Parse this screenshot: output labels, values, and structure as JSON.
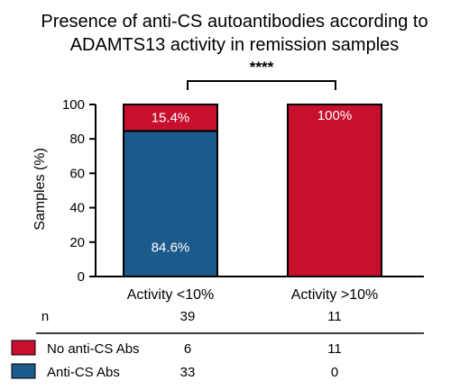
{
  "chart_data": {
    "type": "bar",
    "stacked": true,
    "title": [
      "Presence of anti-CS autoantibodies according to",
      "ADAMTS13 activity in remission samples"
    ],
    "ylabel": "Samples (%)",
    "xlabel": "",
    "ylim": [
      0,
      100
    ],
    "yticks": [
      0,
      20,
      40,
      60,
      80,
      100
    ],
    "categories": [
      "Activity <10%",
      "Activity >10%"
    ],
    "series": [
      {
        "name": "Anti-CS Abs",
        "color": "#1d5a8c",
        "values": [
          84.6,
          0
        ],
        "labels": [
          "84.6%",
          ""
        ]
      },
      {
        "name": "No anti-CS Abs",
        "color": "#c8102e",
        "values": [
          15.4,
          100
        ],
        "labels": [
          "15.4%",
          "100%"
        ]
      }
    ],
    "significance": "****",
    "grid": false
  },
  "table": {
    "n_label": "n",
    "n_values": [
      "39",
      "11"
    ],
    "rows": [
      {
        "label": "No anti-CS Abs",
        "color": "#c8102e",
        "values": [
          "6",
          "11"
        ]
      },
      {
        "label": "Anti-CS Abs",
        "color": "#1d5a8c",
        "values": [
          "33",
          "0"
        ]
      }
    ]
  }
}
